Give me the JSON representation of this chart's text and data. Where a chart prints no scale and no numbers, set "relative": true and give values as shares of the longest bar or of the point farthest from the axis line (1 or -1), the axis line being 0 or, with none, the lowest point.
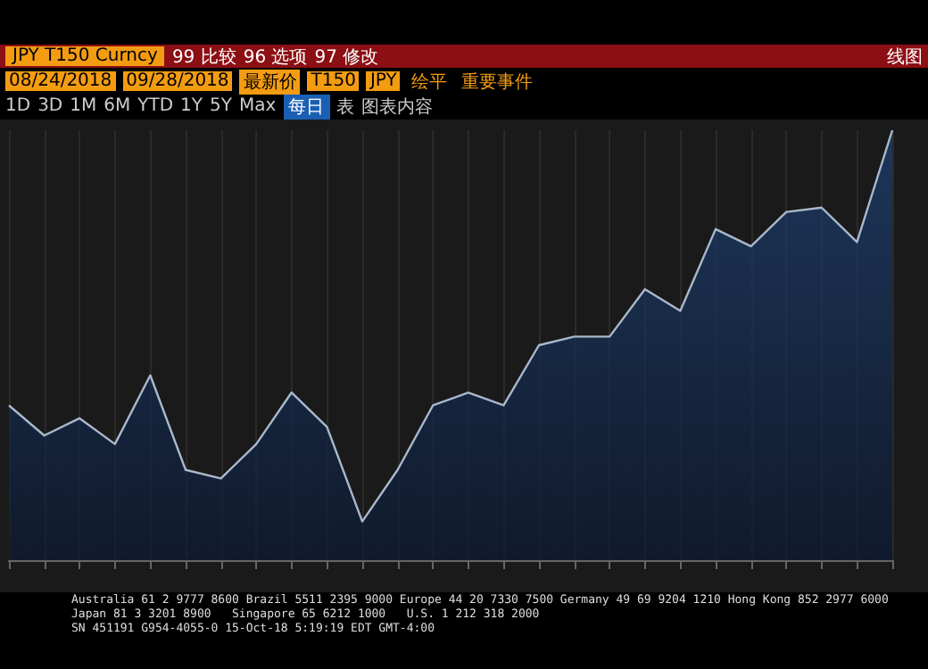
{
  "chart_data": {
    "type": "area",
    "title": "JPY T150 Curncy",
    "annotations": [
      "99 比较",
      "96 选项",
      "97 修改",
      "线图",
      "08/24/2018",
      "09/28/2018",
      "最新价",
      "T150",
      "JPY",
      "绘平",
      "重要事件",
      "1D",
      "3D",
      "1M",
      "6M",
      "YTD",
      "1Y",
      "5Y",
      "Max",
      "每日",
      "表",
      "图表内容",
      "Australia 61 2 9777 8600 Brazil 5511 2395 9000 Europe 44 20 7330 7500 Germany 49 69 9204 1210 Hong Kong 852 2977 6000",
      "Japan 81 3 3201 8900   Singapore 65 6212 1000   U.S. 1 212 318 2000",
      "SN 451191 G954-4055-0 15-Oct-18 5:19:19 EDT GMT-4:00"
    ],
    "categories": [
      null,
      null,
      null,
      null,
      null,
      null,
      null,
      null,
      null,
      null,
      null,
      null,
      null,
      null,
      null,
      null,
      null,
      null,
      null,
      null,
      null,
      null,
      null,
      null,
      null,
      null
    ],
    "relative": true,
    "series": [
      {
        "color": "#1f4275",
        "values": [
          0.36,
          0.29,
          0.33,
          0.27,
          0.43,
          0.21,
          0.19,
          0.27,
          0.39,
          0.31,
          0.09,
          0.21,
          0.36,
          0.39,
          0.36,
          0.5,
          0.52,
          0.52,
          0.63,
          0.58,
          0.77,
          0.73,
          0.81,
          0.82,
          0.74,
          1
        ]
      }
    ],
    "grid": "x",
    "marker": "none"
  }
}
